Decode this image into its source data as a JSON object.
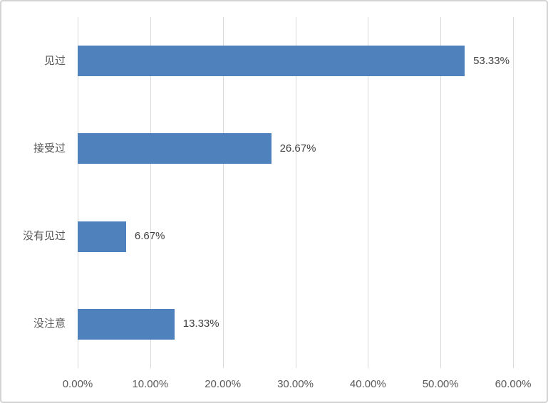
{
  "chart_data": {
    "type": "bar",
    "orientation": "horizontal",
    "title": "",
    "xlabel": "",
    "ylabel": "",
    "categories": [
      "见过",
      "接受过",
      "没有见过",
      "没注意"
    ],
    "values": [
      53.33,
      26.67,
      6.67,
      13.33
    ],
    "data_labels": [
      "53.33%",
      "26.67%",
      "6.67%",
      "13.33%"
    ],
    "x_ticks": [
      "0.00%",
      "10.00%",
      "20.00%",
      "30.00%",
      "40.00%",
      "50.00%",
      "60.00%"
    ],
    "x_tick_values": [
      0,
      10,
      20,
      30,
      40,
      50,
      60
    ],
    "xlim": [
      0,
      60
    ],
    "grid": "vertical-gridlines-on",
    "legend": "none",
    "colors": {
      "bar": "#4F81BD",
      "gridline": "#d9d9d9",
      "axis_text": "#595959",
      "data_label_text": "#404040",
      "background": "#ffffff",
      "frame_border": "#d3d3d3"
    }
  }
}
